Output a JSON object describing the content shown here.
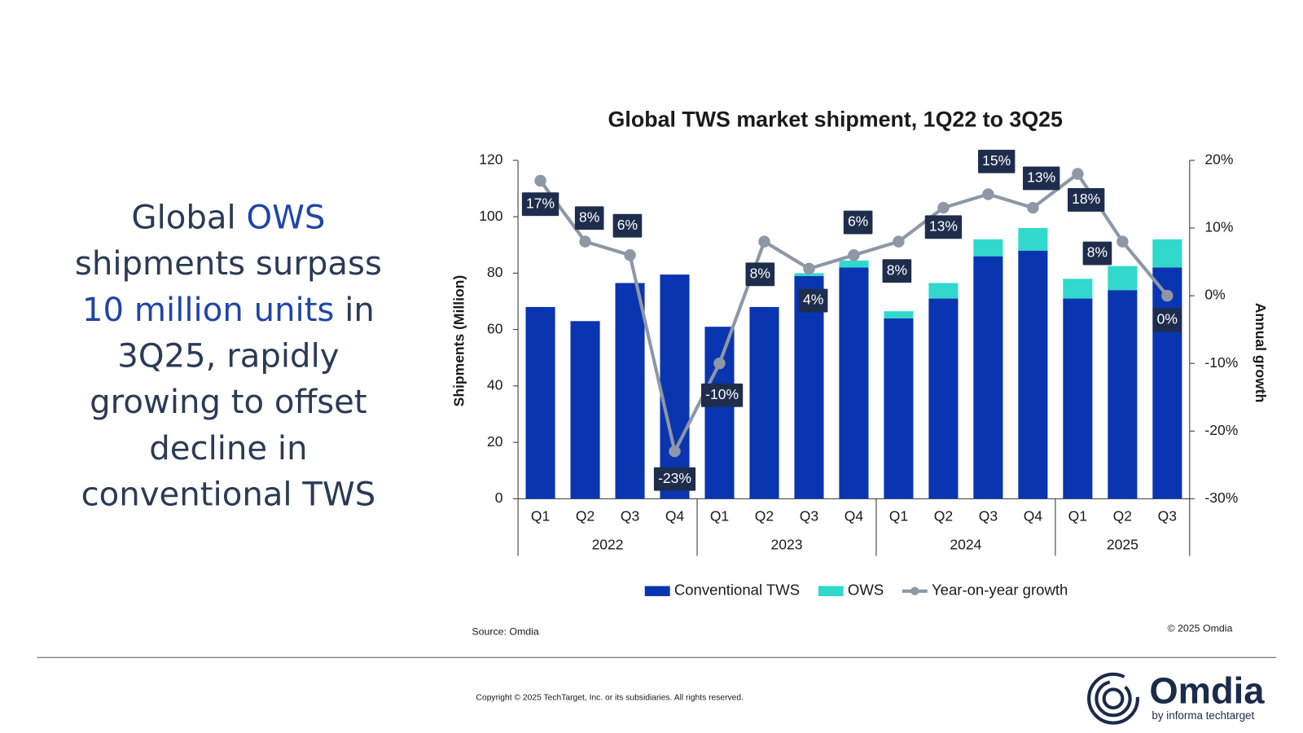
{
  "slide": {
    "headline": [
      {
        "text": "Global "
      },
      {
        "text": "OWS",
        "highlight": true
      },
      {
        "text": " shipments surpass "
      },
      {
        "text": "10 million units",
        "highlight": true
      },
      {
        "text": " in 3Q25, rapidly growing to offset decline in conventional TWS"
      }
    ],
    "source": "Source: Omdia",
    "chart_copyright": "© 2025 Omdia",
    "footer": "Copyright © 2025 TechTarget, Inc. or its subsidiaries. All rights reserved.",
    "logo": "Omdia",
    "logo_tagline": "by informa techtarget"
  },
  "chart_data": {
    "type": "bar",
    "stacked": true,
    "title": "Global TWS market shipment, 1Q22 to 3Q25",
    "y_label": "Shipments (Million)",
    "y2_label": "Annual growth",
    "categories": [
      "Q1",
      "Q2",
      "Q3",
      "Q4",
      "Q1",
      "Q2",
      "Q3",
      "Q4",
      "Q1",
      "Q2",
      "Q3",
      "Q4",
      "Q1",
      "Q2",
      "Q3"
    ],
    "category_groups": [
      {
        "label": "2022",
        "span": 4
      },
      {
        "label": "2023",
        "span": 4
      },
      {
        "label": "2024",
        "span": 4
      },
      {
        "label": "2025",
        "span": 3
      }
    ],
    "ylim": [
      0,
      120
    ],
    "yticks": [
      0,
      20,
      40,
      60,
      80,
      100,
      120
    ],
    "y2lim": [
      -30,
      20
    ],
    "y2ticks": [
      {
        "value": -30,
        "label": "-30%"
      },
      {
        "value": -20,
        "label": "-20%"
      },
      {
        "value": -10,
        "label": "-10%"
      },
      {
        "value": 0,
        "label": "0%"
      },
      {
        "value": 10,
        "label": "10%"
      },
      {
        "value": 20,
        "label": "20%"
      }
    ],
    "legend": "bottom",
    "series": [
      {
        "name": "Conventional TWS",
        "color": "#0a35b0",
        "values": [
          68,
          63,
          76.5,
          79.5,
          61,
          68,
          79,
          82,
          64,
          71,
          86,
          88,
          71,
          74,
          82
        ]
      },
      {
        "name": "OWS",
        "color": "#30d9cc",
        "values": [
          0,
          0,
          0,
          0,
          0,
          0,
          1,
          2.5,
          2.5,
          5.5,
          6,
          8,
          7,
          8.5,
          10
        ]
      },
      {
        "name": "Year-on-year growth",
        "type": "line",
        "axis": "y2",
        "color": "#8d97a6",
        "values": [
          17,
          8,
          6,
          -23,
          -10,
          8,
          4,
          6,
          8,
          13,
          15,
          13,
          18,
          8,
          0
        ],
        "value_labels": [
          "17%",
          "8%",
          "6%",
          "-23%",
          "-10%",
          "8%",
          "4%",
          "6%",
          "8%",
          "13%",
          "15%",
          "13%",
          "18%",
          "8%",
          "0%"
        ]
      }
    ]
  }
}
